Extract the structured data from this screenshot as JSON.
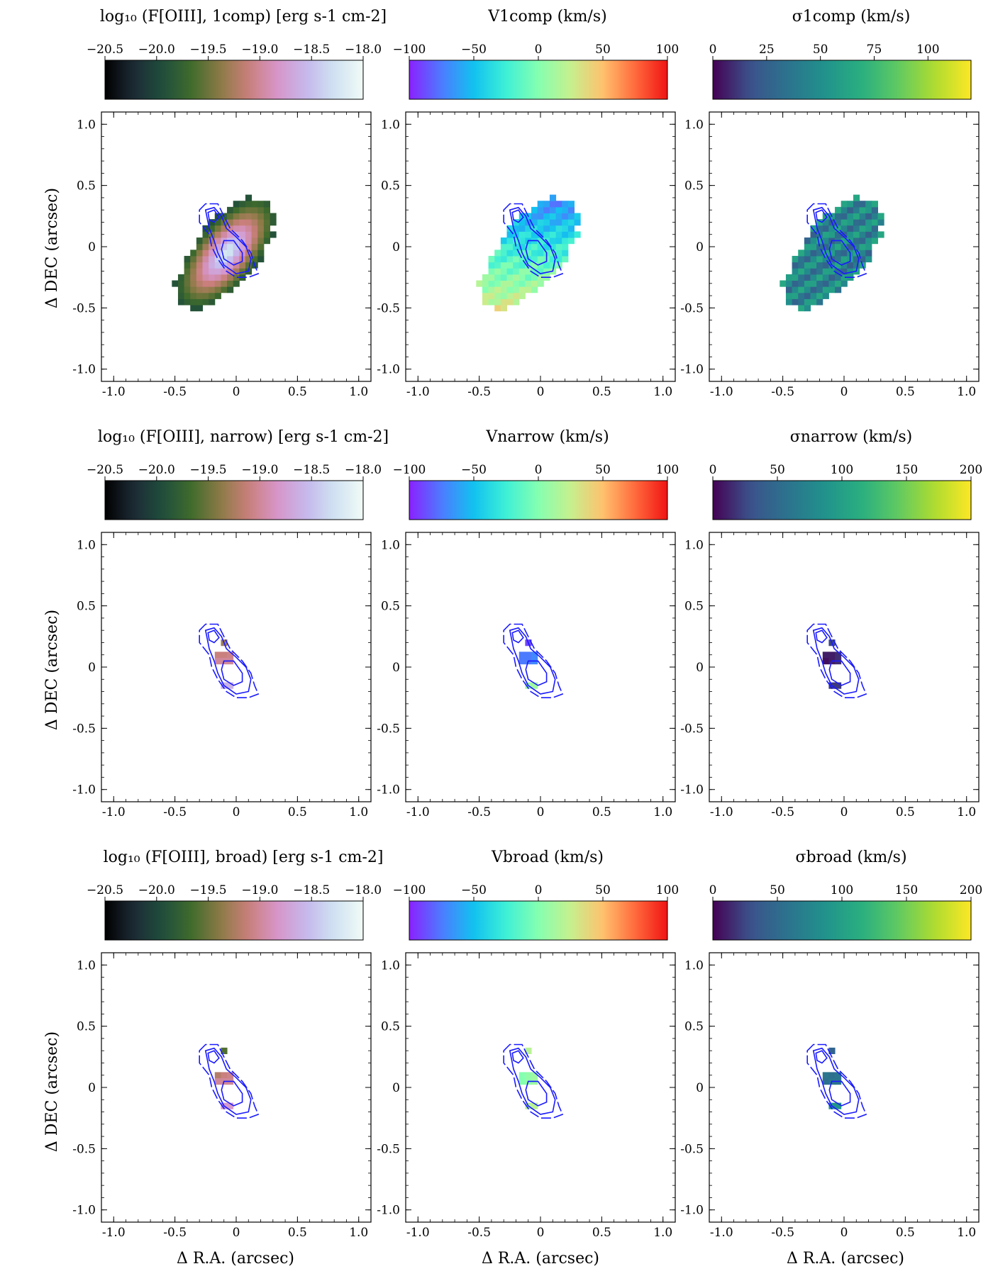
{
  "figure": {
    "ylabel": "Δ DEC (arcsec)",
    "xlabel": "Δ R.A. (arcsec)",
    "contour_color": "#1a1aff"
  },
  "chart_data": {
    "type": "heatmap",
    "axis_ticks": [
      -1.0,
      -0.5,
      0,
      0.5,
      1.0
    ],
    "axis_tick_labels": [
      "-1.0",
      "-0.5",
      "0",
      "0.5",
      "1.0"
    ],
    "xlim": [
      -1.1,
      1.1
    ],
    "ylim": [
      -1.1,
      1.1
    ],
    "pixel_size_arcsec": 0.05,
    "colormaps": {
      "flux": [
        "#000000",
        "#1d2a35",
        "#1f4d3c",
        "#3f6b2c",
        "#8a7a45",
        "#c97f7a",
        "#d795c8",
        "#c5b7ec",
        "#cfe2f2",
        "#f1fbf6"
      ],
      "velocity": [
        "#8a21ff",
        "#4d7bff",
        "#12c2ef",
        "#3ef0d6",
        "#85ffb0",
        "#c6f08e",
        "#ffc16d",
        "#ff6a3d",
        "#f01313"
      ],
      "dispersion": [
        "#440154",
        "#3b528b",
        "#2c728e",
        "#21918c",
        "#28ae80",
        "#5ec962",
        "#addc30",
        "#fde725"
      ]
    },
    "rows": [
      {
        "name": "1comp",
        "panels": [
          {
            "quantity": "flux",
            "cb_title": "log₁₀ (F[OIII], 1comp) [erg s-1 cm-2]",
            "vmin": -20.5,
            "vmax": -18.0,
            "cb_ticks": [
              -20.5,
              -20.0,
              -19.5,
              -19.0,
              -18.5,
              -18.0
            ],
            "cb_tick_labels": [
              "−20.5",
              "−20.0",
              "−19.5",
              "−19.0",
              "−18.5",
              "−18.0"
            ],
            "map": "extended"
          },
          {
            "quantity": "velocity",
            "cb_title": "V1comp (km/s)",
            "vmin": -100,
            "vmax": 100,
            "cb_ticks": [
              -100,
              -50,
              0,
              50,
              100
            ],
            "cb_tick_labels": [
              "−100",
              "−50",
              "0",
              "50",
              "100"
            ],
            "map": "extended"
          },
          {
            "quantity": "dispersion",
            "cb_title": "σ1comp (km/s)",
            "vmin": 0,
            "vmax": 120,
            "cb_ticks": [
              0,
              25,
              50,
              75,
              100
            ],
            "cb_tick_labels": [
              "0",
              "25",
              "50",
              "75",
              "100"
            ],
            "map": "extended"
          }
        ]
      },
      {
        "name": "narrow",
        "panels": [
          {
            "quantity": "flux",
            "cb_title": "log₁₀ (F[OIII], narrow) [erg s-1 cm-2]",
            "vmin": -20.5,
            "vmax": -18.0,
            "cb_ticks": [
              -20.5,
              -20.0,
              -19.5,
              -19.0,
              -18.5,
              -18.0
            ],
            "cb_tick_labels": [
              "−20.5",
              "−20.0",
              "−19.5",
              "−19.0",
              "−18.5",
              "−18.0"
            ],
            "map": "compact"
          },
          {
            "quantity": "velocity",
            "cb_title": "Vnarrow (km/s)",
            "vmin": -100,
            "vmax": 100,
            "cb_ticks": [
              -100,
              -50,
              0,
              50,
              100
            ],
            "cb_tick_labels": [
              "−100",
              "−50",
              "0",
              "50",
              "100"
            ],
            "map": "compact"
          },
          {
            "quantity": "dispersion",
            "cb_title": "σnarrow (km/s)",
            "vmin": 0,
            "vmax": 200,
            "cb_ticks": [
              0,
              50,
              100,
              150,
              200
            ],
            "cb_tick_labels": [
              "0",
              "50",
              "100",
              "150",
              "200"
            ],
            "map": "compact"
          }
        ]
      },
      {
        "name": "broad",
        "panels": [
          {
            "quantity": "flux",
            "cb_title": "log₁₀ (F[OIII], broad) [erg s-1 cm-2]",
            "vmin": -20.5,
            "vmax": -18.0,
            "cb_ticks": [
              -20.5,
              -20.0,
              -19.5,
              -19.0,
              -18.5,
              -18.0
            ],
            "cb_tick_labels": [
              "−20.5",
              "−20.0",
              "−19.5",
              "−19.0",
              "−18.5",
              "−18.0"
            ],
            "map": "compact"
          },
          {
            "quantity": "velocity",
            "cb_title": "Vbroad (km/s)",
            "vmin": -100,
            "vmax": 100,
            "cb_ticks": [
              -100,
              -50,
              0,
              50,
              100
            ],
            "cb_tick_labels": [
              "−100",
              "−50",
              "0",
              "50",
              "100"
            ],
            "map": "compact"
          },
          {
            "quantity": "dispersion",
            "cb_title": "σbroad (km/s)",
            "vmin": 0,
            "vmax": 200,
            "cb_ticks": [
              0,
              50,
              100,
              150,
              200
            ],
            "cb_tick_labels": [
              "0",
              "50",
              "100",
              "150",
              "200"
            ],
            "map": "compact"
          }
        ]
      }
    ],
    "compact_maps": {
      "narrow": {
        "flux": [
          [
            -0.1,
            0.2,
            -19.3
          ],
          [
            -0.15,
            0.1,
            -19.1
          ],
          [
            -0.1,
            0.1,
            -19.1
          ],
          [
            -0.05,
            0.1,
            -19.05
          ],
          [
            -0.15,
            0.05,
            -19.0
          ],
          [
            -0.1,
            0.05,
            -19.0
          ],
          [
            -0.05,
            0.05,
            -19.0
          ],
          [
            -0.1,
            -0.15,
            -18.6
          ],
          [
            -0.05,
            -0.15,
            -18.6
          ]
        ],
        "velocity": [
          [
            -0.1,
            0.2,
            -90
          ],
          [
            -0.15,
            0.1,
            -75
          ],
          [
            -0.1,
            0.1,
            -75
          ],
          [
            -0.05,
            0.1,
            -70
          ],
          [
            -0.15,
            0.05,
            -75
          ],
          [
            -0.1,
            0.05,
            -75
          ],
          [
            -0.05,
            0.05,
            -70
          ],
          [
            -0.1,
            -0.15,
            10
          ],
          [
            -0.05,
            -0.15,
            10
          ]
        ],
        "dispersion": [
          [
            -0.1,
            0.2,
            25
          ],
          [
            -0.15,
            0.1,
            10
          ],
          [
            -0.1,
            0.1,
            10
          ],
          [
            -0.05,
            0.1,
            15
          ],
          [
            -0.15,
            0.05,
            5
          ],
          [
            -0.1,
            0.05,
            10
          ],
          [
            -0.05,
            0.05,
            15
          ],
          [
            -0.1,
            -0.15,
            20
          ],
          [
            -0.05,
            -0.15,
            20
          ]
        ]
      },
      "broad": {
        "flux": [
          [
            -0.1,
            0.3,
            -19.6
          ],
          [
            -0.15,
            0.1,
            -19.2
          ],
          [
            -0.1,
            0.1,
            -19.1
          ],
          [
            -0.05,
            0.1,
            -19.05
          ],
          [
            -0.15,
            0.05,
            -19.0
          ],
          [
            -0.1,
            0.05,
            -19.0
          ],
          [
            -0.05,
            0.05,
            -19.0
          ],
          [
            -0.1,
            -0.15,
            -18.8
          ],
          [
            -0.05,
            -0.15,
            -18.8
          ]
        ],
        "velocity": [
          [
            -0.1,
            0.3,
            20
          ],
          [
            -0.15,
            0.1,
            0
          ],
          [
            -0.1,
            0.1,
            5
          ],
          [
            -0.05,
            0.1,
            10
          ],
          [
            -0.15,
            0.05,
            0
          ],
          [
            -0.1,
            0.05,
            5
          ],
          [
            -0.05,
            0.05,
            10
          ],
          [
            -0.1,
            -0.15,
            20
          ],
          [
            -0.05,
            -0.15,
            20
          ]
        ],
        "dispersion": [
          [
            -0.1,
            0.3,
            45
          ],
          [
            -0.15,
            0.1,
            60
          ],
          [
            -0.1,
            0.1,
            55
          ],
          [
            -0.05,
            0.1,
            60
          ],
          [
            -0.15,
            0.05,
            55
          ],
          [
            -0.1,
            0.05,
            60
          ],
          [
            -0.05,
            0.05,
            60
          ],
          [
            -0.1,
            -0.15,
            90
          ],
          [
            -0.05,
            -0.15,
            90
          ]
        ]
      }
    },
    "extended_map": {
      "region_center": [
        -0.08,
        -0.05
      ],
      "region_major_axis_arcsec": 0.55,
      "region_minor_axis_arcsec": 0.25,
      "region_angle_deg": -50,
      "flux_peak": -18.1,
      "flux_edge": -19.9,
      "velocity_north": -85,
      "velocity_south": 35,
      "dispersion_typical": 45
    },
    "contours": {
      "levels": 3,
      "outer_ring": [
        [
          -0.3,
          0.3
        ],
        [
          -0.25,
          0.35
        ],
        [
          -0.15,
          0.35
        ],
        [
          -0.1,
          0.25
        ],
        [
          -0.05,
          0.15
        ],
        [
          0.05,
          0.05
        ],
        [
          0.12,
          -0.05
        ],
        [
          0.15,
          -0.15
        ],
        [
          0.18,
          -0.22
        ],
        [
          0.1,
          -0.25
        ],
        [
          0.0,
          -0.25
        ],
        [
          -0.08,
          -0.2
        ],
        [
          -0.15,
          -0.1
        ],
        [
          -0.2,
          0.0
        ],
        [
          -0.22,
          0.1
        ],
        [
          -0.3,
          0.2
        ]
      ],
      "middle_ring": [
        [
          -0.25,
          0.3
        ],
        [
          -0.18,
          0.32
        ],
        [
          -0.12,
          0.25
        ],
        [
          -0.08,
          0.15
        ],
        [
          0.0,
          0.08
        ],
        [
          0.08,
          0.0
        ],
        [
          0.12,
          -0.1
        ],
        [
          0.1,
          -0.2
        ],
        [
          0.0,
          -0.22
        ],
        [
          -0.1,
          -0.15
        ],
        [
          -0.15,
          -0.05
        ],
        [
          -0.18,
          0.05
        ],
        [
          -0.22,
          0.15
        ]
      ],
      "inner_blob_a": [
        [
          -0.23,
          0.28
        ],
        [
          -0.18,
          0.3
        ],
        [
          -0.14,
          0.24
        ],
        [
          -0.18,
          0.2
        ],
        [
          -0.22,
          0.22
        ]
      ],
      "inner_blob_b": [
        [
          -0.1,
          0.05
        ],
        [
          -0.02,
          0.05
        ],
        [
          0.05,
          -0.05
        ],
        [
          0.05,
          -0.12
        ],
        [
          -0.02,
          -0.15
        ],
        [
          -0.1,
          -0.1
        ],
        [
          -0.12,
          -0.02
        ]
      ]
    }
  }
}
